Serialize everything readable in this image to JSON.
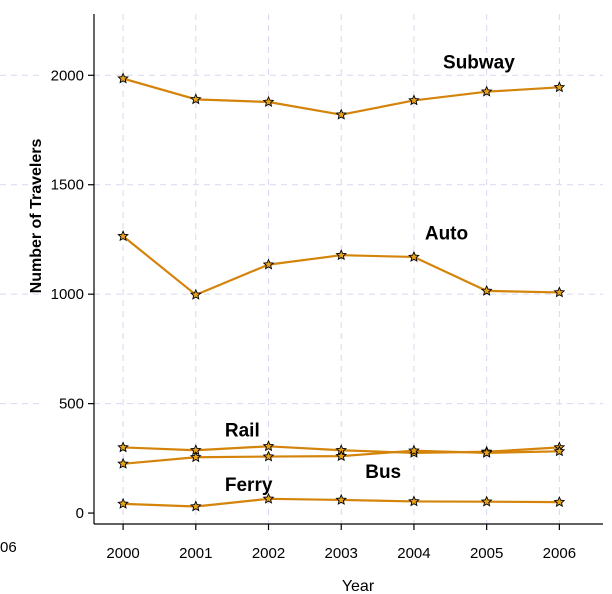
{
  "chart_data": {
    "type": "line",
    "xlabel": "Year",
    "ylabel": "Number of Travelers",
    "x": [
      2000,
      2001,
      2002,
      2003,
      2004,
      2005,
      2006
    ],
    "xlim": [
      1999.6,
      2006.6
    ],
    "ylim": [
      -50,
      2280
    ],
    "yticks": [
      0,
      500,
      1000,
      1500,
      2000
    ],
    "grid": true,
    "legend": "none",
    "line_color": "#d4840a",
    "marker_color": "#e8a21c",
    "series": [
      {
        "name": "Subway",
        "values": [
          1985,
          1890,
          1878,
          1820,
          1885,
          1925,
          1945
        ],
        "label_at": [
          2004.4,
          2030
        ]
      },
      {
        "name": "Auto",
        "values": [
          1265,
          997,
          1135,
          1178,
          1170,
          1015,
          1008
        ],
        "label_at": [
          2004.15,
          1250
        ]
      },
      {
        "name": "Rail",
        "values": [
          300,
          287,
          305,
          287,
          275,
          280,
          300
        ],
        "label_at": [
          2001.4,
          350
        ]
      },
      {
        "name": "Bus",
        "values": [
          225,
          255,
          258,
          260,
          285,
          275,
          282
        ],
        "label_at": [
          2003.33,
          160
        ]
      },
      {
        "name": "Ferry",
        "values": [
          42,
          30,
          65,
          60,
          53,
          52,
          50
        ],
        "label_at": [
          2001.4,
          100
        ]
      }
    ],
    "ghost_tick_label": "06"
  }
}
